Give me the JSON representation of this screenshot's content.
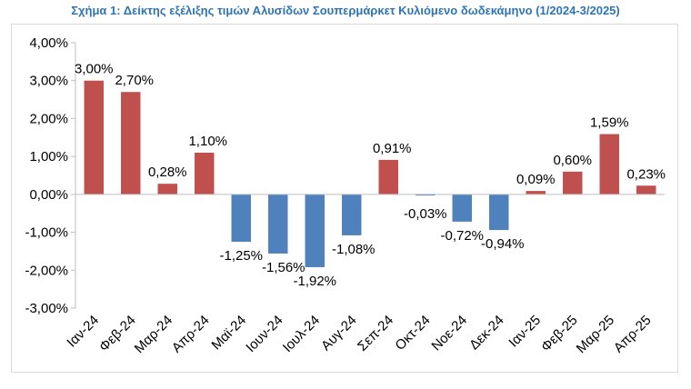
{
  "chart_data": {
    "type": "bar",
    "title": "Σχήμα 1: Δείκτης εξέλιξης τιμών Αλυσίδων Σουπερμάρκετ Κυλιόμενο δωδεκάμηνο (1/2024-3/2025)",
    "xlabel": "",
    "ylabel": "",
    "categories": [
      "Ιαν-24",
      "Φεβ-24",
      "Μαρ-24",
      "Απρ-24",
      "Μαϊ-24",
      "Ιουν-24",
      "Ιουλ-24",
      "Αυγ-24",
      "Σεπ-24",
      "Οκτ-24",
      "Νοε-24",
      "Δεκ-24",
      "Ιαν-25",
      "Φεβ-25",
      "Μαρ-25",
      "Απρ-25"
    ],
    "values": [
      3.0,
      2.7,
      0.28,
      1.1,
      -1.25,
      -1.56,
      -1.92,
      -1.08,
      0.91,
      -0.03,
      -0.72,
      -0.94,
      0.09,
      0.6,
      1.59,
      0.23
    ],
    "data_labels": [
      "3,00%",
      "2,70%",
      "0,28%",
      "1,10%",
      "-1,25%",
      "-1,56%",
      "-1,92%",
      "-1,08%",
      "0,91%",
      "-0,03%",
      "-0,72%",
      "-0,94%",
      "0,09%",
      "0,60%",
      "1,59%",
      "0,23%"
    ],
    "ylim": [
      -3,
      4
    ],
    "yticks": [
      4,
      3,
      2,
      1,
      0,
      -1,
      -2,
      -3
    ],
    "ytick_labels": [
      "4,00%",
      "3,00%",
      "2,00%",
      "1,00%",
      "0,00%",
      "-1,00%",
      "-2,00%",
      "-3,00%"
    ],
    "grid": false,
    "legend": "none",
    "colors": {
      "positive": "#c0504d",
      "negative": "#4f81bd",
      "title": "#2e74b5",
      "axis": "#bfbfbf"
    }
  }
}
